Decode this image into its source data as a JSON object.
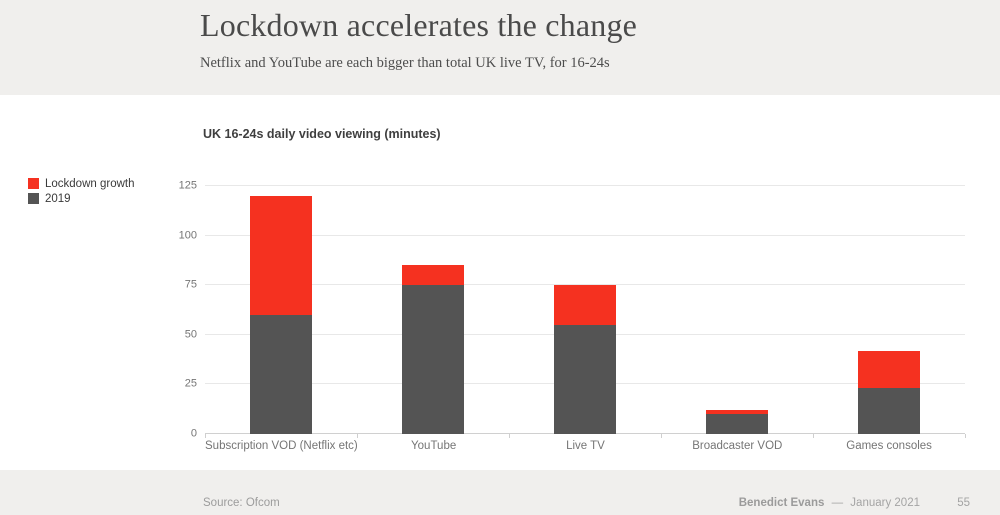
{
  "header": {
    "title": "Lockdown accelerates the change",
    "subtitle": "Netflix and YouTube are each bigger than total UK live TV, for 16-24s"
  },
  "chart": {
    "title": "UK 16-24s daily video viewing (minutes)"
  },
  "chart_data": {
    "type": "bar",
    "stacked": true,
    "title": "UK 16-24s daily video viewing (minutes)",
    "categories": [
      "Subscription VOD (Netflix etc)",
      "YouTube",
      "Live TV",
      "Broadcaster VOD",
      "Games consoles"
    ],
    "series": [
      {
        "name": "2019",
        "color": "#545454",
        "values": [
          60,
          75,
          55,
          10,
          23
        ]
      },
      {
        "name": "Lockdown growth",
        "color": "#f53120",
        "values": [
          60,
          10,
          20,
          2,
          19
        ]
      }
    ],
    "totals": [
      120,
      85,
      75,
      12,
      42
    ],
    "ylim": [
      0,
      125
    ],
    "yticks": [
      0,
      25,
      50,
      75,
      100,
      125
    ],
    "grid": true,
    "legend_position": "left",
    "legend_order": [
      "Lockdown growth",
      "2019"
    ]
  },
  "footer": {
    "source": "Source: Ofcom",
    "author": "Benedict Evans",
    "separator": "—",
    "date": "January 2021",
    "page_number": "55"
  },
  "colors": {
    "band_background": "#f0efed",
    "bar_2019": "#545454",
    "bar_growth": "#f53120",
    "gridline": "#e8e8e8",
    "axis_text": "#757575",
    "title_text": "#4a4a4a",
    "footer_text": "#a4a4a4"
  }
}
